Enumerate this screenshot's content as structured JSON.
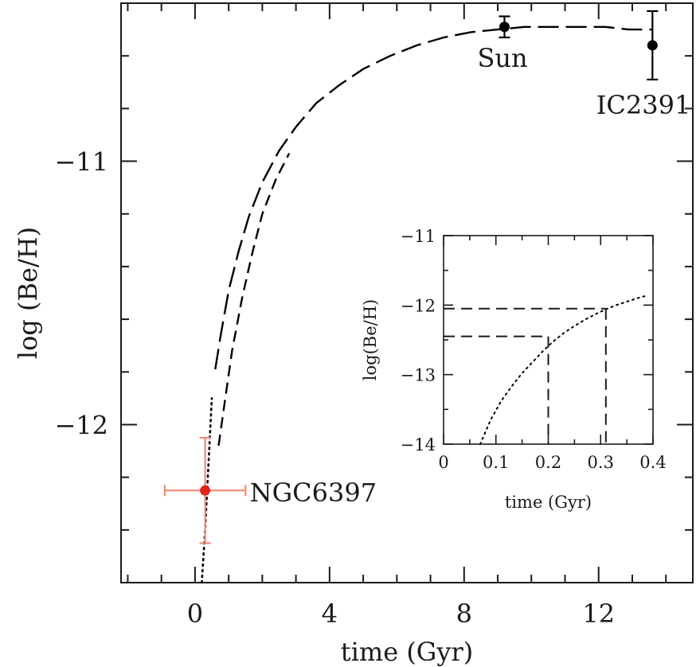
{
  "chart_data": [
    {
      "type": "line",
      "xlabel": "time (Gyr)",
      "ylabel": "log (Be/H)",
      "xlim": [
        -2.2,
        14.8
      ],
      "ylim": [
        -12.6,
        -10.4
      ],
      "xticks": [
        0,
        4,
        8,
        12
      ],
      "xtick_labels": [
        "0",
        "4",
        "8",
        "12"
      ],
      "yticks": [
        -11,
        -12
      ],
      "ytick_labels": [
        "−11",
        "−12"
      ],
      "grid": false,
      "series": [
        {
          "style": "long-dashed",
          "color": "#000000",
          "x": [
            0.6,
            0.75,
            1.0,
            1.3,
            1.6,
            2.0,
            2.5,
            3.0,
            3.6,
            4.3,
            5.0,
            5.8,
            6.6,
            7.4,
            8.2,
            9.0,
            9.8,
            10.6,
            11.4,
            12.2,
            12.9,
            13.6
          ],
          "y": [
            -11.79,
            -11.67,
            -11.49,
            -11.34,
            -11.21,
            -11.08,
            -10.96,
            -10.87,
            -10.78,
            -10.71,
            -10.65,
            -10.6,
            -10.56,
            -10.53,
            -10.51,
            -10.5,
            -10.49,
            -10.49,
            -10.49,
            -10.49,
            -10.5,
            -10.5
          ]
        },
        {
          "style": "dashed",
          "color": "#000000",
          "x": [
            0.7,
            0.9,
            1.1,
            1.4,
            1.7,
            2.0,
            2.4,
            2.8
          ],
          "y": [
            -12.08,
            -11.9,
            -11.72,
            -11.52,
            -11.35,
            -11.2,
            -11.07,
            -10.97
          ]
        },
        {
          "style": "dotted",
          "color": "#000000",
          "x": [
            0.2,
            0.3,
            0.4,
            0.5
          ],
          "y": [
            -12.6,
            -12.4,
            -12.15,
            -11.9
          ]
        }
      ],
      "points": [
        {
          "label": "NGC6397",
          "x": 0.3,
          "y": -12.25,
          "xerr": 1.2,
          "yerr_low": 0.2,
          "yerr_high": 0.2,
          "color": "#e2231a",
          "errcolor": "#f08a78"
        },
        {
          "label": "Sun",
          "x": 9.2,
          "y": -10.49,
          "yerr_low": 0.04,
          "yerr_high": 0.04,
          "color": "#000000"
        },
        {
          "label": "IC2391",
          "x": 13.6,
          "y": -10.56,
          "yerr_low": 0.13,
          "yerr_high": 0.13,
          "color": "#000000"
        }
      ]
    },
    {
      "type": "line",
      "xlabel": "time (Gyr)",
      "ylabel": "log(Be/H)",
      "xlim": [
        0,
        0.4
      ],
      "ylim": [
        -14,
        -11
      ],
      "xticks": [
        0,
        0.1,
        0.2,
        0.3,
        0.4
      ],
      "xtick_labels": [
        "0",
        "0.1",
        "0.2",
        "0.3",
        "0.4"
      ],
      "yticks": [
        -11,
        -12,
        -13,
        -14
      ],
      "ytick_labels": [
        "−11",
        "−12",
        "−13",
        "−14"
      ],
      "grid": false,
      "series": [
        {
          "style": "dotted",
          "color": "#000000",
          "x": [
            0.07,
            0.09,
            0.11,
            0.13,
            0.15,
            0.17,
            0.19,
            0.21,
            0.23,
            0.25,
            0.27,
            0.29,
            0.31,
            0.33,
            0.35,
            0.37,
            0.39
          ],
          "y": [
            -14.0,
            -13.65,
            -13.38,
            -13.17,
            -12.98,
            -12.82,
            -12.66,
            -12.52,
            -12.4,
            -12.3,
            -12.21,
            -12.13,
            -12.06,
            -12.0,
            -11.95,
            -11.9,
            -11.86
          ]
        }
      ],
      "guides": [
        {
          "x": 0.2,
          "y": -12.45
        },
        {
          "x": 0.31,
          "y": -12.05
        }
      ]
    }
  ]
}
